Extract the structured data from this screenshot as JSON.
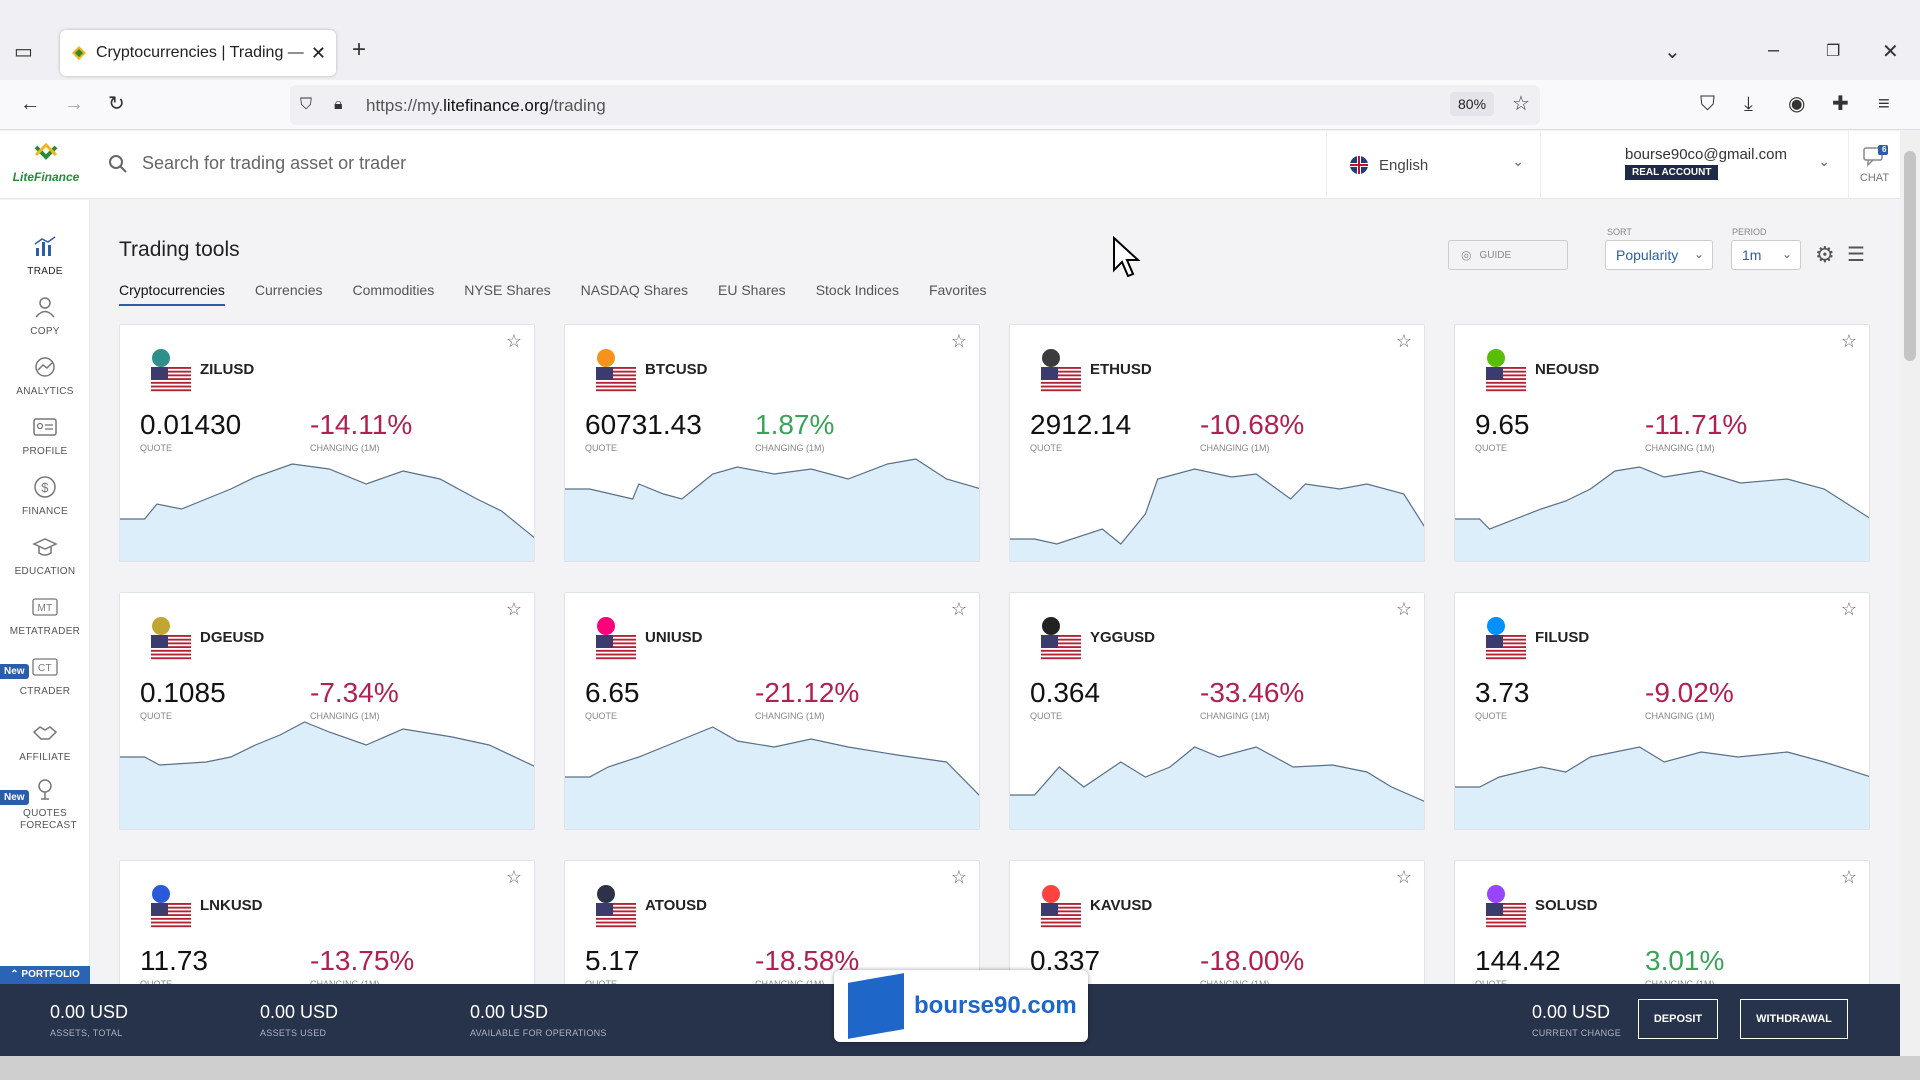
{
  "browser": {
    "tab_title": "Cryptocurrencies | Trading — Li",
    "url_prefix": "https://my.",
    "url_domain": "litefinance.org",
    "url_path": "/trading",
    "zoom": "80%"
  },
  "header": {
    "logo": "LiteFinance",
    "search_placeholder": "Search for trading asset or trader",
    "language": "English",
    "email": "bourse90co@gmail.com",
    "account_badge": "REAL ACCOUNT",
    "chat_label": "CHAT",
    "chat_count": "6"
  },
  "sidebar": {
    "items": [
      {
        "label": "TRADE",
        "icon": "chart-bars-icon"
      },
      {
        "label": "COPY",
        "icon": "user-icon"
      },
      {
        "label": "ANALYTICS",
        "icon": "analytics-icon"
      },
      {
        "label": "PROFILE",
        "icon": "id-card-icon"
      },
      {
        "label": "FINANCE",
        "icon": "dollar-icon"
      },
      {
        "label": "EDUCATION",
        "icon": "graduation-cap-icon"
      },
      {
        "label": "METATRADER",
        "icon": "mt-icon"
      },
      {
        "label": "CTRADER",
        "icon": "ct-icon"
      },
      {
        "label": "AFFILIATE",
        "icon": "handshake-icon"
      },
      {
        "label": "QUOTES FORECAST",
        "icon": "forecast-icon"
      }
    ],
    "new_badge": "New",
    "portfolio": "PORTFOLIO"
  },
  "main": {
    "title": "Trading tools",
    "tabs": [
      "Cryptocurrencies",
      "Currencies",
      "Commodities",
      "NYSE Shares",
      "NASDAQ Shares",
      "EU Shares",
      "Stock Indices",
      "Favorites"
    ],
    "guide": "GUIDE",
    "sort_label": "SORT",
    "sort_value": "Popularity",
    "period_label": "PERIOD",
    "period_value": "1m",
    "quote_label": "QUOTE",
    "changing_label": "CHANGING (1M)"
  },
  "cards": [
    {
      "symbol": "ZILUSD",
      "quote": "0.01430",
      "change": "-14.11%",
      "trend": "neg",
      "coin_color": "#2f8f8a"
    },
    {
      "symbol": "BTCUSD",
      "quote": "60731.43",
      "change": "1.87%",
      "trend": "pos",
      "coin_color": "#f7931a"
    },
    {
      "symbol": "ETHUSD",
      "quote": "2912.14",
      "change": "-10.68%",
      "trend": "neg",
      "coin_color": "#3c3c3d"
    },
    {
      "symbol": "NEOUSD",
      "quote": "9.65",
      "change": "-11.71%",
      "trend": "neg",
      "coin_color": "#58bf00"
    },
    {
      "symbol": "DGEUSD",
      "quote": "0.1085",
      "change": "-7.34%",
      "trend": "neg",
      "coin_color": "#c2a633"
    },
    {
      "symbol": "UNIUSD",
      "quote": "6.65",
      "change": "-21.12%",
      "trend": "neg",
      "coin_color": "#ff007a"
    },
    {
      "symbol": "YGGUSD",
      "quote": "0.364",
      "change": "-33.46%",
      "trend": "neg",
      "coin_color": "#222222"
    },
    {
      "symbol": "FILUSD",
      "quote": "3.73",
      "change": "-9.02%",
      "trend": "neg",
      "coin_color": "#0090ff"
    },
    {
      "symbol": "LNKUSD",
      "quote": "11.73",
      "change": "-13.75%",
      "trend": "neg",
      "coin_color": "#2a5ada"
    },
    {
      "symbol": "ATOUSD",
      "quote": "5.17",
      "change": "-18.58%",
      "trend": "neg",
      "coin_color": "#2e3148"
    },
    {
      "symbol": "KAVUSD",
      "quote": "0.337",
      "change": "-18.00%",
      "trend": "neg",
      "coin_color": "#ff433e"
    },
    {
      "symbol": "SOLUSD",
      "quote": "144.42",
      "change": "3.01%",
      "trend": "pos",
      "coin_color": "#9945ff"
    }
  ],
  "bottom": {
    "assets_total": "0.00 USD",
    "assets_total_label": "ASSETS, TOTAL",
    "assets_used": "0.00 USD",
    "assets_used_label": "ASSETS USED",
    "available": "0.00 USD",
    "available_label": "AVAILABLE FOR OPERATIONS",
    "current_change": "0.00 USD",
    "current_change_label": "CURRENT CHANGE",
    "deposit": "DEPOSIT",
    "withdrawal": "WITHDRAWAL"
  },
  "watermark": "bourse90.com",
  "colors": {
    "accent": "#2b5dab",
    "negative": "#b0214f",
    "positive": "#3aa35a",
    "bottom_bar": "#27324b",
    "spark_fill": "#dbeefa",
    "spark_line": "#5a6f88"
  }
}
